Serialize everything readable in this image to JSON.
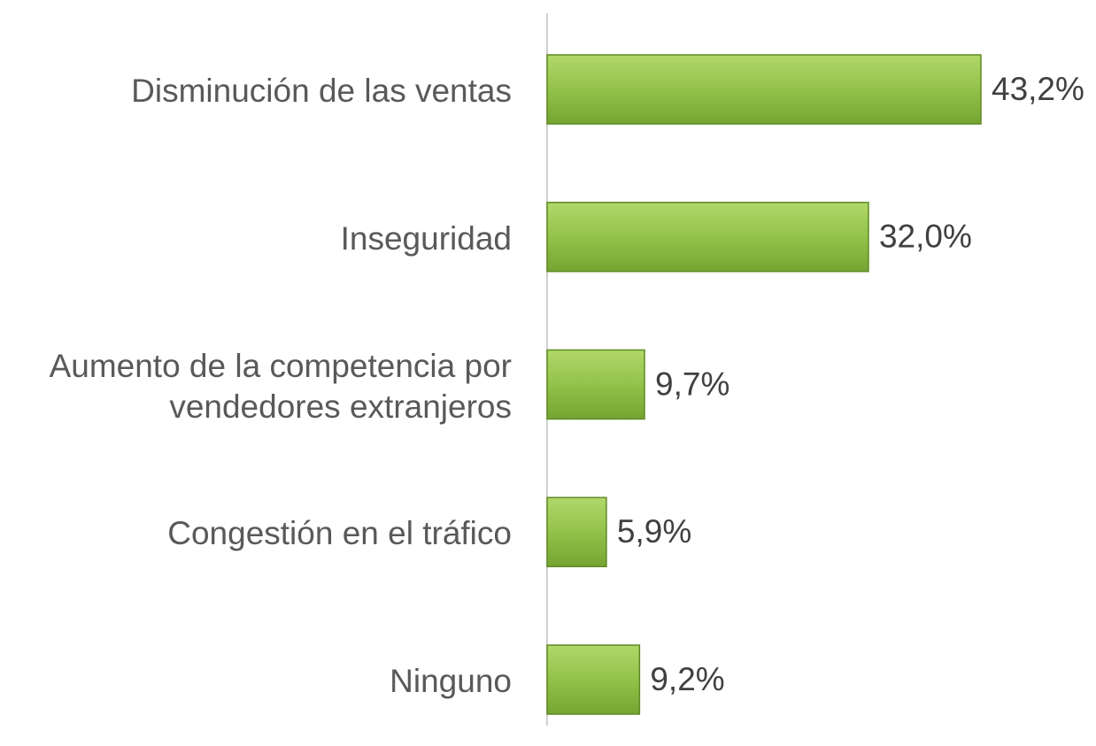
{
  "chart_data": {
    "type": "bar",
    "orientation": "horizontal",
    "categories": [
      "Disminución de las ventas",
      "Inseguridad",
      "Aumento de la competencia por vendedores extranjeros",
      "Congestión en el tráfico",
      "Ninguno"
    ],
    "values": [
      43.2,
      32.0,
      9.7,
      5.9,
      9.2
    ],
    "value_labels": [
      "43,2%",
      "32,0%",
      "9,7%",
      "5,9%",
      "9,2%"
    ],
    "color": "#8dbb45"
  }
}
